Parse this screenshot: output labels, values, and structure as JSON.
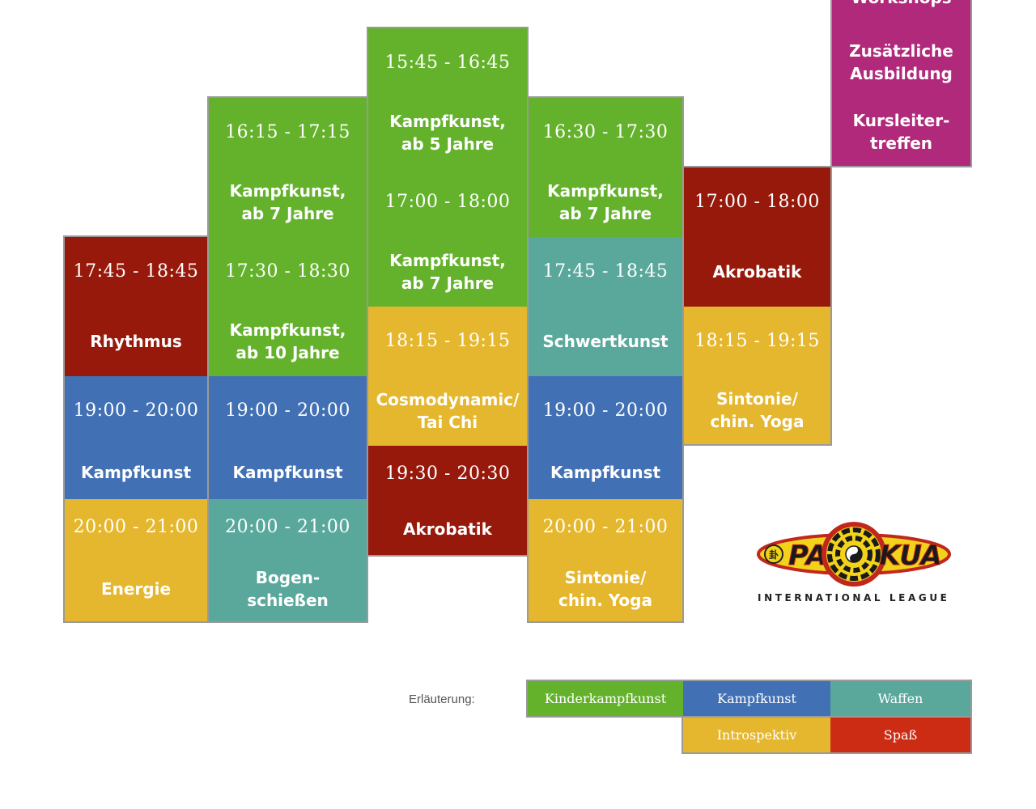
{
  "colors": {
    "kinder": "#64b22c",
    "kampf": "#4171b4",
    "waffen": "#5aa89c",
    "intro": "#e5b72e",
    "spass_cell": "#97190c",
    "spass_legend": "#cc2b14",
    "special": "#b1297a"
  },
  "schedule": {
    "col1": {
      "rhythmus_time": "17:45 - 18:45",
      "rhythmus_title": "Rhythmus",
      "kampf_time": "19:00 - 20:00",
      "kampf_title": "Kampfkunst",
      "energie_time": "20:00 - 21:00",
      "energie_title": "Energie"
    },
    "col2": {
      "kinder7_time": "16:15 - 17:15",
      "kinder7_title": "Kampfkunst,\nab 7 Jahre",
      "kinder10_time": "17:30 - 18:30",
      "kinder10_title": "Kampfkunst,\nab 10 Jahre",
      "kampf_time": "19:00 - 20:00",
      "kampf_title": "Kampfkunst",
      "bogen_time": "20:00 - 21:00",
      "bogen_title": "Bogen-\nschießen"
    },
    "col3": {
      "kinder5_time": "15:45 - 16:45",
      "kinder5_title": "Kampfkunst,\nab 5 Jahre",
      "kinder7_time": "17:00 - 18:00",
      "kinder7_title": "Kampfkunst,\nab 7 Jahre",
      "cosmo_time": "18:15 - 19:15",
      "cosmo_title": "Cosmodynamic/\nTai Chi",
      "akro_time": "19:30 - 20:30",
      "akro_title": "Akrobatik"
    },
    "col4": {
      "kinder7_time": "16:30 - 17:30",
      "kinder7_title": "Kampfkunst,\nab 7 Jahre",
      "schwert_time": "17:45 - 18:45",
      "schwert_title": "Schwertkunst",
      "kampf_time": "19:00 - 20:00",
      "kampf_title": "Kampfkunst",
      "sintonie_time": "20:00 - 21:00",
      "sintonie_title": "Sintonie/\nchin. Yoga"
    },
    "col5": {
      "akro_time": "17:00 - 18:00",
      "akro_title": "Akrobatik",
      "sintonie_time": "18:15 - 19:15",
      "sintonie_title": "Sintonie/\nchin. Yoga"
    },
    "col6": {
      "workshops_title": "Workshops",
      "ausbildung_title": "Zusätzliche\nAusbildung",
      "kursleiter_title": "Kursleiter-\ntreffen"
    }
  },
  "legend": {
    "label": "Erläuterung:",
    "kinder": "Kinderkampfkunst",
    "kampf": "Kampfkunst",
    "waffen": "Waffen",
    "intro": "Introspektiv",
    "spass": "Spaß"
  },
  "logo": {
    "left_text": "PA",
    "right_text": "KUA",
    "caption": "INTERNATIONAL LEAGUE",
    "icon": "bagua-trigram-icon"
  }
}
